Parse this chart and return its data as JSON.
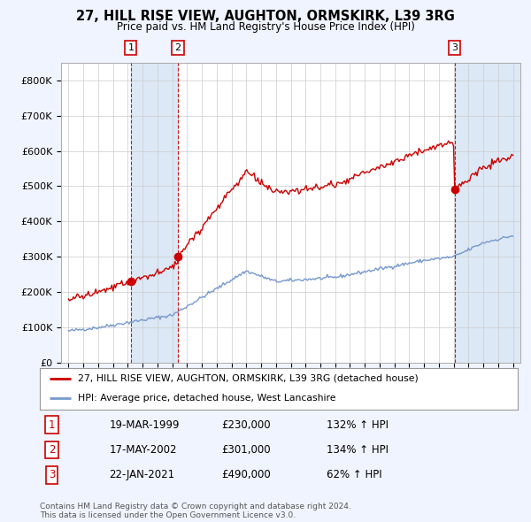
{
  "title": "27, HILL RISE VIEW, AUGHTON, ORMSKIRK, L39 3RG",
  "subtitle": "Price paid vs. HM Land Registry's House Price Index (HPI)",
  "red_label": "27, HILL RISE VIEW, AUGHTON, ORMSKIRK, L39 3RG (detached house)",
  "blue_label": "HPI: Average price, detached house, West Lancashire",
  "transaction_display": [
    {
      "num": 1,
      "date": "19-MAR-1999",
      "price": "£230,000",
      "pct": "132% ↑ HPI"
    },
    {
      "num": 2,
      "date": "17-MAY-2002",
      "price": "£301,000",
      "pct": "134% ↑ HPI"
    },
    {
      "num": 3,
      "date": "22-JAN-2021",
      "price": "£490,000",
      "pct": "62% ↑ HPI"
    }
  ],
  "trans_dates": [
    1999.21,
    2002.38,
    2021.06
  ],
  "trans_prices": [
    230000,
    301000,
    490000
  ],
  "footer": "Contains HM Land Registry data © Crown copyright and database right 2024.\nThis data is licensed under the Open Government Licence v3.0.",
  "ylim": [
    0,
    850000
  ],
  "yticks": [
    0,
    100000,
    200000,
    300000,
    400000,
    500000,
    600000,
    700000,
    800000
  ],
  "ytick_labels": [
    "£0",
    "£100K",
    "£200K",
    "£300K",
    "£400K",
    "£500K",
    "£600K",
    "£700K",
    "£800K"
  ],
  "xlim": [
    1994.5,
    2025.5
  ],
  "xtick_start": 1995,
  "xtick_end": 2025,
  "red_color": "#cc0000",
  "blue_color": "#7799cc",
  "shade_color": "#dce8f5",
  "bg_color": "#f0f4ff",
  "plot_bg": "#ffffff",
  "grid_color": "#cccccc",
  "hpi_seed": 42,
  "hpi_noise_std": 2500,
  "red_noise_std": 5000
}
